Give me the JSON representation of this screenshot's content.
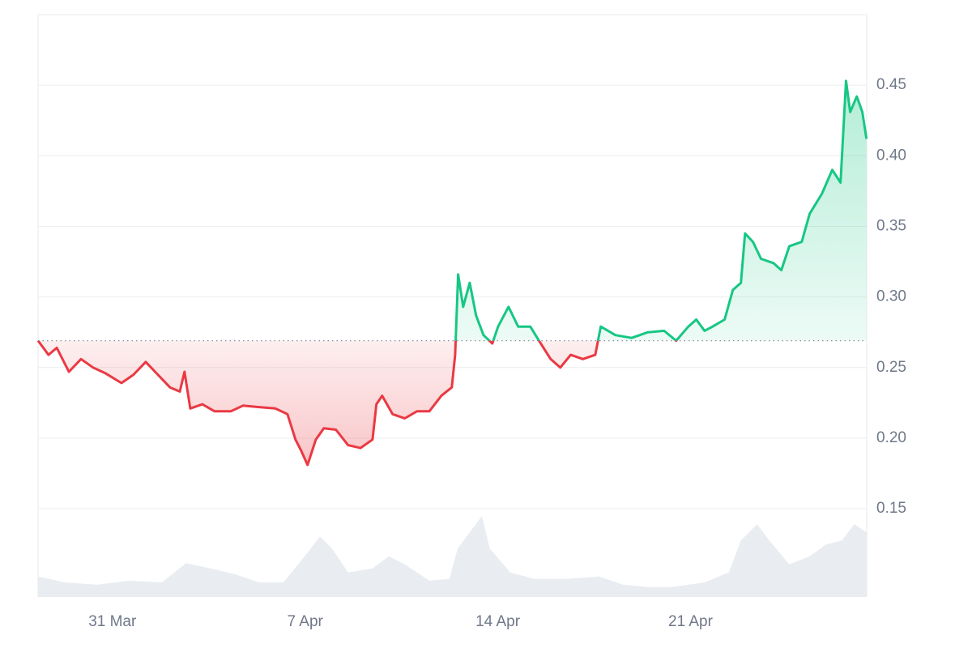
{
  "chart_data": {
    "type": "line",
    "x": [
      28.3,
      28.68,
      28.98,
      29.42,
      29.86,
      30.3,
      30.74,
      31.33,
      31.77,
      32.21,
      32.65,
      33.09,
      33.45,
      33.62,
      33.83,
      34.27,
      34.71,
      35.3,
      35.74,
      36.33,
      36.92,
      37.36,
      37.65,
      37.86,
      38.09,
      38.39,
      38.68,
      39.12,
      39.56,
      40.01,
      40.45,
      40.59,
      40.8,
      41.18,
      41.62,
      42.06,
      42.51,
      42.95,
      43.33,
      43.45,
      43.56,
      43.74,
      43.98,
      44.21,
      44.48,
      44.8,
      45.01,
      45.39,
      45.74,
      46.18,
      46.56,
      46.92,
      47.27,
      47.65,
      48.09,
      48.54,
      48.74,
      49.27,
      49.86,
      50.45,
      51.04,
      51.48,
      51.92,
      52.21,
      52.51,
      52.8,
      53.24,
      53.54,
      53.83,
      53.98,
      54.27,
      54.56,
      55.01,
      55.3,
      55.59,
      56.04,
      56.33,
      56.77,
      57.15,
      57.45,
      57.65,
      57.8,
      58.04,
      58.24,
      58.39
    ],
    "values": [
      0.269,
      0.259,
      0.264,
      0.247,
      0.256,
      0.25,
      0.246,
      0.239,
      0.245,
      0.254,
      0.245,
      0.236,
      0.233,
      0.247,
      0.221,
      0.224,
      0.219,
      0.219,
      0.223,
      0.222,
      0.221,
      0.217,
      0.199,
      0.191,
      0.181,
      0.199,
      0.207,
      0.206,
      0.195,
      0.193,
      0.199,
      0.224,
      0.23,
      0.217,
      0.214,
      0.219,
      0.219,
      0.23,
      0.236,
      0.259,
      0.316,
      0.293,
      0.31,
      0.287,
      0.273,
      0.267,
      0.279,
      0.293,
      0.279,
      0.279,
      0.267,
      0.256,
      0.25,
      0.259,
      0.256,
      0.259,
      0.279,
      0.273,
      0.271,
      0.275,
      0.276,
      0.269,
      0.279,
      0.284,
      0.276,
      0.279,
      0.284,
      0.305,
      0.31,
      0.345,
      0.339,
      0.327,
      0.324,
      0.319,
      0.336,
      0.339,
      0.359,
      0.373,
      0.39,
      0.381,
      0.453,
      0.431,
      0.442,
      0.431,
      0.412
    ],
    "baseline": 0.269,
    "up_color": "#16c784",
    "down_color": "#ea3943",
    "xlim": [
      28.3,
      58.4
    ],
    "xticks": [
      {
        "value": 31,
        "label": "31 Mar"
      },
      {
        "value": 38,
        "label": "7 Apr"
      },
      {
        "value": 45,
        "label": "14 Apr"
      },
      {
        "value": 52,
        "label": "21 Apr"
      }
    ],
    "ylim": [
      0.0875,
      0.5
    ],
    "yticks": [
      0.15,
      {
        "value": 0.2,
        "label": "0.20"
      },
      0.25,
      {
        "value": 0.3,
        "label": "0.30"
      },
      0.35,
      {
        "value": 0.4,
        "label": "0.40"
      },
      0.45
    ],
    "grid": true,
    "volume": {
      "axis": "y2",
      "color": "#e9ecf0",
      "x": [
        28.3,
        29.27,
        30.45,
        31.62,
        32.8,
        33.68,
        34.56,
        35.45,
        36.33,
        37.21,
        38.09,
        38.54,
        38.98,
        39.56,
        40.45,
        41.04,
        41.62,
        42.51,
        43.24,
        43.54,
        43.98,
        44.42,
        44.71,
        45.45,
        46.33,
        47.51,
        48.68,
        49.56,
        50.45,
        51.33,
        52.51,
        53.39,
        53.83,
        54.42,
        54.86,
        55.59,
        56.33,
        56.92,
        57.5,
        57.95,
        58.39
      ],
      "values": [
        0.035,
        0.025,
        0.021,
        0.028,
        0.025,
        0.058,
        0.049,
        0.039,
        0.025,
        0.025,
        0.076,
        0.104,
        0.083,
        0.042,
        0.049,
        0.07,
        0.056,
        0.028,
        0.031,
        0.083,
        0.111,
        0.139,
        0.083,
        0.042,
        0.031,
        0.031,
        0.035,
        0.021,
        0.017,
        0.017,
        0.025,
        0.042,
        0.097,
        0.125,
        0.097,
        0.056,
        0.07,
        0.09,
        0.097,
        0.125,
        0.111
      ]
    },
    "y2lim": [
      0,
      1
    ]
  }
}
